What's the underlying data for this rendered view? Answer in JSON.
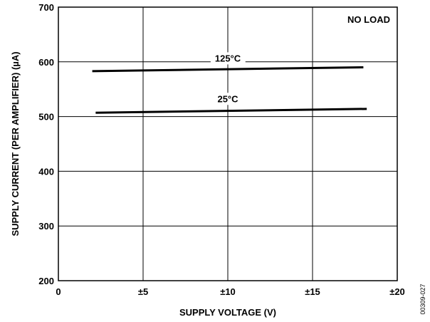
{
  "chart_data": {
    "type": "line",
    "xlabel": "SUPPLY VOLTAGE (V)",
    "ylabel": "SUPPLY CURRENT (PER AMPLIFIER) (µA)",
    "xlim": [
      0,
      20
    ],
    "ylim": [
      200,
      700
    ],
    "x_ticks": [
      {
        "value": 0,
        "label": "0"
      },
      {
        "value": 5,
        "label": "±5"
      },
      {
        "value": 10,
        "label": "±10"
      },
      {
        "value": 15,
        "label": "±15"
      },
      {
        "value": 20,
        "label": "±20"
      }
    ],
    "y_ticks": [
      {
        "value": 200,
        "label": "200"
      },
      {
        "value": 300,
        "label": "300"
      },
      {
        "value": 400,
        "label": "400"
      },
      {
        "value": 500,
        "label": "500"
      },
      {
        "value": 600,
        "label": "600"
      },
      {
        "value": 700,
        "label": "700"
      }
    ],
    "grid": true,
    "annotation": "NO LOAD",
    "figure_code": "00309-027",
    "series": [
      {
        "name": "125°C",
        "x": [
          2,
          18
        ],
        "y": [
          583,
          590
        ],
        "label_at": {
          "x": 10,
          "y": 607
        }
      },
      {
        "name": "25°C",
        "x": [
          2.2,
          18.2
        ],
        "y": [
          507,
          514
        ],
        "label_at": {
          "x": 10,
          "y": 533
        }
      }
    ]
  }
}
